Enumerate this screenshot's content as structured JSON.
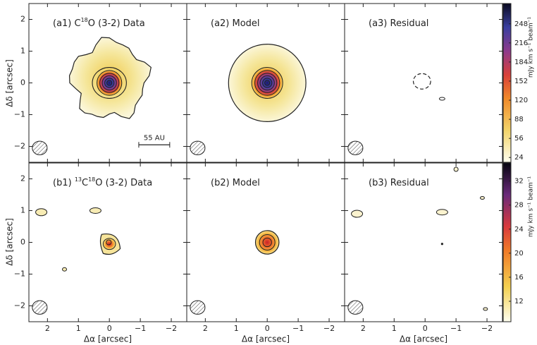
{
  "figure": {
    "panels": [
      {
        "prefix": "(a1) C",
        "sup": "18",
        "suffix": "O (3-2) Data"
      },
      {
        "prefix": "(a2)  Model"
      },
      {
        "prefix": "(a3)  Residual"
      },
      {
        "prefix": "(b1) ",
        "sup": "13",
        "suffix": "C",
        "sup2": "18",
        "suffix2": "O (3-2) Data"
      },
      {
        "prefix": "(b2)  Model"
      },
      {
        "prefix": "(b3)  Residual"
      }
    ],
    "scalebar": "55 AU",
    "xlabel": "Δα [arcsec]",
    "ylabel": "Δδ [arcsec]",
    "xlim": [
      2.6,
      -2.5
    ],
    "ylim": [
      -2.5,
      2.5
    ],
    "xticks": [
      2,
      1,
      0,
      {
        "value": -1,
        "label": "−1"
      },
      {
        "value": -2,
        "label": "−2"
      }
    ],
    "yticks": [
      2,
      1,
      0,
      {
        "value": -1,
        "label": "−1"
      },
      {
        "value": -2,
        "label": "−2"
      }
    ],
    "colorbars": [
      {
        "lim": [
          16,
          282
        ],
        "ticks": [
          24,
          56,
          88,
          120,
          152,
          184,
          216,
          248
        ]
      },
      {
        "lim": [
          8.6,
          35
        ],
        "ticks": [
          12,
          16,
          20,
          24,
          28,
          32
        ]
      }
    ],
    "colorbar_label": "mJy km s⁻¹ beam⁻¹"
  }
}
